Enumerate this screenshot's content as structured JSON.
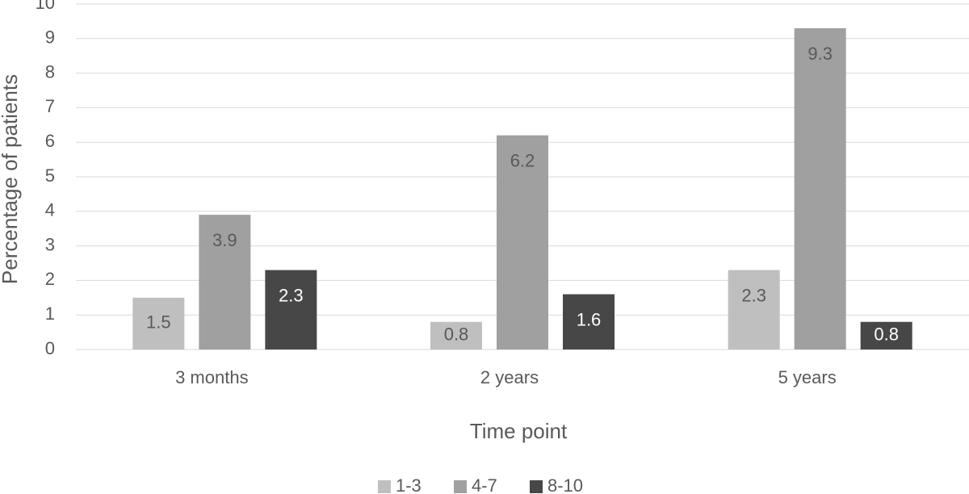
{
  "chart_data": {
    "type": "bar",
    "x_label": "Time point",
    "y_label": "Percentage of patients",
    "categories": [
      "3 months",
      "2 years",
      "5 years"
    ],
    "series": [
      {
        "name": "1-3",
        "color": "#bfbfbf",
        "values": [
          1.5,
          0.8,
          2.3
        ]
      },
      {
        "name": "4-7",
        "color": "#a0a0a0",
        "values": [
          3.9,
          6.2,
          9.3
        ]
      },
      {
        "name": "8-10",
        "color": "#474747",
        "values": [
          2.3,
          1.6,
          0.8
        ]
      }
    ],
    "ylim": [
      0,
      10
    ],
    "yticks": [
      0,
      1,
      2,
      3,
      4,
      5,
      6,
      7,
      8,
      9,
      10
    ],
    "grid": true,
    "legend": "bottom"
  }
}
